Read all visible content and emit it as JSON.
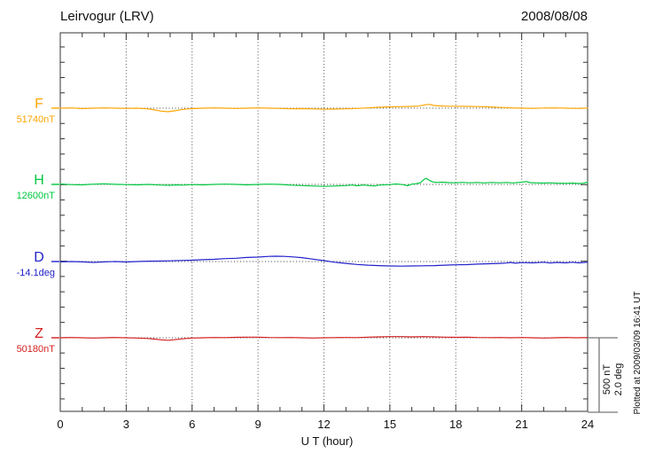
{
  "header": {
    "title": "Leirvogur (LRV)",
    "date": "2008/08/08"
  },
  "footer_note": "Plotted at 2009/03/09 16:41 UT",
  "scale_bar": {
    "nT_label": "500 nT",
    "deg_label": "2.0 deg"
  },
  "chart_data": {
    "type": "line",
    "title": "Leirvogur (LRV)",
    "date": "2008/08/08",
    "xlabel": "U T (hour)",
    "x_range": [
      0,
      24
    ],
    "x_ticks": [
      0,
      3,
      6,
      9,
      12,
      15,
      18,
      21,
      24
    ],
    "x_minor_tick_step_hours": 1,
    "grid": "dotted vertical lines every 3 hours; dotted horizontal baseline per channel",
    "scale": {
      "nT_per_division": 500,
      "deg_per_division": 2.0
    },
    "points_format": "[hour_UT, offset_from_baseline_in_channel_units]",
    "series": [
      {
        "name": "F",
        "units": "nT",
        "baseline_label": "51740nT",
        "baseline_value": 51740,
        "color": "#FFA500",
        "points": [
          [
            0,
            0
          ],
          [
            0.5,
            2
          ],
          [
            1,
            -3
          ],
          [
            1.5,
            0
          ],
          [
            2,
            2
          ],
          [
            2.5,
            0
          ],
          [
            3,
            -2
          ],
          [
            3.5,
            0
          ],
          [
            4,
            -5
          ],
          [
            4.3,
            -12
          ],
          [
            4.6,
            -20
          ],
          [
            4.9,
            -24
          ],
          [
            5.2,
            -18
          ],
          [
            5.5,
            -10
          ],
          [
            5.8,
            -5
          ],
          [
            6,
            -3
          ],
          [
            6.5,
            0
          ],
          [
            7,
            2
          ],
          [
            7.5,
            0
          ],
          [
            8,
            -2
          ],
          [
            8.5,
            0
          ],
          [
            9,
            2
          ],
          [
            9.5,
            0
          ],
          [
            10,
            -2
          ],
          [
            10.5,
            -4
          ],
          [
            11,
            -3
          ],
          [
            11.5,
            -5
          ],
          [
            12,
            -7
          ],
          [
            12.5,
            -6
          ],
          [
            13,
            -4
          ],
          [
            13.5,
            -2
          ],
          [
            14,
            2
          ],
          [
            14.5,
            6
          ],
          [
            15,
            9
          ],
          [
            15.5,
            10
          ],
          [
            16,
            12
          ],
          [
            16.3,
            14
          ],
          [
            16.6,
            22
          ],
          [
            16.8,
            26
          ],
          [
            17,
            18
          ],
          [
            17.3,
            15
          ],
          [
            17.6,
            13
          ],
          [
            18,
            13
          ],
          [
            18.5,
            12
          ],
          [
            19,
            11
          ],
          [
            19.5,
            9
          ],
          [
            20,
            5
          ],
          [
            20.5,
            2
          ],
          [
            21,
            0
          ],
          [
            21.5,
            -2
          ],
          [
            22,
            1
          ],
          [
            22.5,
            2
          ],
          [
            23,
            0
          ],
          [
            23.5,
            -2
          ],
          [
            24,
            0
          ]
        ]
      },
      {
        "name": "H",
        "units": "nT",
        "baseline_label": "12600nT",
        "baseline_value": 12600,
        "color": "#00C840",
        "points": [
          [
            0,
            3
          ],
          [
            0.3,
            0
          ],
          [
            0.6,
            -2
          ],
          [
            1,
            -3
          ],
          [
            1.3,
            0
          ],
          [
            1.6,
            2
          ],
          [
            2,
            4
          ],
          [
            2.3,
            2
          ],
          [
            2.6,
            0
          ],
          [
            3,
            -1
          ],
          [
            3.5,
            -3
          ],
          [
            4,
            0
          ],
          [
            4.5,
            -4
          ],
          [
            5,
            -6
          ],
          [
            5.3,
            -3
          ],
          [
            5.6,
            -5
          ],
          [
            6,
            -1
          ],
          [
            6.5,
            -3
          ],
          [
            7,
            0
          ],
          [
            7.5,
            2
          ],
          [
            8,
            0
          ],
          [
            8.5,
            -3
          ],
          [
            9,
            0
          ],
          [
            9.5,
            2
          ],
          [
            10,
            0
          ],
          [
            10.5,
            -5
          ],
          [
            11,
            -8
          ],
          [
            11.5,
            -11
          ],
          [
            12,
            -13
          ],
          [
            12.5,
            -11
          ],
          [
            13,
            -8
          ],
          [
            13.3,
            -4
          ],
          [
            13.5,
            -9
          ],
          [
            13.8,
            -4
          ],
          [
            14,
            -7
          ],
          [
            14.3,
            -11
          ],
          [
            14.5,
            -5
          ],
          [
            15,
            -1
          ],
          [
            15.3,
            3
          ],
          [
            15.6,
            -2
          ],
          [
            15.8,
            -9
          ],
          [
            16,
            2
          ],
          [
            16.2,
            5
          ],
          [
            16.4,
            12
          ],
          [
            16.55,
            34
          ],
          [
            16.65,
            41
          ],
          [
            16.8,
            28
          ],
          [
            16.95,
            17
          ],
          [
            17.1,
            13
          ],
          [
            17.4,
            15
          ],
          [
            17.7,
            12
          ],
          [
            18,
            11
          ],
          [
            18.3,
            14
          ],
          [
            18.6,
            11
          ],
          [
            19,
            13
          ],
          [
            19.3,
            10
          ],
          [
            19.6,
            13
          ],
          [
            20,
            11
          ],
          [
            20.3,
            13
          ],
          [
            20.6,
            10
          ],
          [
            21,
            15
          ],
          [
            21.2,
            19
          ],
          [
            21.4,
            12
          ],
          [
            21.7,
            10
          ],
          [
            22,
            9
          ],
          [
            22.3,
            11
          ],
          [
            22.6,
            8
          ],
          [
            23,
            7
          ],
          [
            23.3,
            9
          ],
          [
            23.6,
            6
          ],
          [
            23.8,
            8
          ],
          [
            24,
            15
          ]
        ]
      },
      {
        "name": "D",
        "units": "deg",
        "baseline_label": "-14.1deg",
        "baseline_value": -14.1,
        "color": "#2222CC",
        "points": [
          [
            0,
            -0.01
          ],
          [
            0.5,
            0
          ],
          [
            1,
            -0.01
          ],
          [
            1.5,
            -0.025
          ],
          [
            2,
            -0.01
          ],
          [
            2.5,
            0
          ],
          [
            3,
            -0.012
          ],
          [
            3.5,
            0
          ],
          [
            4,
            0.01
          ],
          [
            4.5,
            0.012
          ],
          [
            5,
            0.02
          ],
          [
            5.5,
            0.03
          ],
          [
            6,
            0.035
          ],
          [
            6.5,
            0.05
          ],
          [
            7,
            0.06
          ],
          [
            7.5,
            0.08
          ],
          [
            8,
            0.09
          ],
          [
            8.5,
            0.11
          ],
          [
            9,
            0.12
          ],
          [
            9.5,
            0.14
          ],
          [
            9.8,
            0.145
          ],
          [
            10.2,
            0.14
          ],
          [
            10.6,
            0.125
          ],
          [
            11,
            0.105
          ],
          [
            11.5,
            0.065
          ],
          [
            12,
            0.025
          ],
          [
            12.5,
            -0.02
          ],
          [
            13,
            -0.05
          ],
          [
            13.5,
            -0.08
          ],
          [
            14,
            -0.1
          ],
          [
            14.5,
            -0.11
          ],
          [
            15,
            -0.12
          ],
          [
            15.5,
            -0.125
          ],
          [
            16,
            -0.12
          ],
          [
            16.5,
            -0.115
          ],
          [
            17,
            -0.11
          ],
          [
            17.5,
            -0.1
          ],
          [
            18,
            -0.09
          ],
          [
            18.5,
            -0.085
          ],
          [
            19,
            -0.07
          ],
          [
            19.5,
            -0.06
          ],
          [
            20,
            -0.05
          ],
          [
            20.3,
            -0.04
          ],
          [
            20.5,
            -0.025
          ],
          [
            20.7,
            -0.045
          ],
          [
            21,
            -0.03
          ],
          [
            21.5,
            -0.035
          ],
          [
            22,
            -0.02
          ],
          [
            22.3,
            -0.04
          ],
          [
            22.6,
            -0.025
          ],
          [
            23,
            -0.035
          ],
          [
            23.3,
            -0.02
          ],
          [
            23.6,
            -0.035
          ],
          [
            24,
            -0.02
          ]
        ]
      },
      {
        "name": "Z",
        "units": "nT",
        "baseline_label": "50180nT",
        "baseline_value": 50180,
        "color": "#D42020",
        "points": [
          [
            0,
            0
          ],
          [
            0.5,
            2
          ],
          [
            1,
            0
          ],
          [
            1.5,
            -2
          ],
          [
            2,
            0
          ],
          [
            2.5,
            2
          ],
          [
            3,
            0
          ],
          [
            3.5,
            -2
          ],
          [
            4,
            -5
          ],
          [
            4.3,
            -9
          ],
          [
            4.6,
            -14
          ],
          [
            4.9,
            -17
          ],
          [
            5.2,
            -13
          ],
          [
            5.5,
            -8
          ],
          [
            5.8,
            -4
          ],
          [
            6,
            -2
          ],
          [
            6.5,
            0
          ],
          [
            7,
            2
          ],
          [
            7.5,
            1
          ],
          [
            8,
            3
          ],
          [
            8.5,
            4
          ],
          [
            9,
            4
          ],
          [
            9.5,
            2
          ],
          [
            10,
            1
          ],
          [
            10.5,
            2
          ],
          [
            11,
            0
          ],
          [
            11.5,
            -2
          ],
          [
            12,
            0
          ],
          [
            12.5,
            1
          ],
          [
            13,
            2
          ],
          [
            13.5,
            1
          ],
          [
            14,
            4
          ],
          [
            14.5,
            6
          ],
          [
            15,
            8
          ],
          [
            15.5,
            8
          ],
          [
            16,
            6
          ],
          [
            16.5,
            8
          ],
          [
            17,
            6
          ],
          [
            17.5,
            4
          ],
          [
            18,
            3
          ],
          [
            18.5,
            4
          ],
          [
            19,
            2
          ],
          [
            19.5,
            1
          ],
          [
            20,
            2
          ],
          [
            20.5,
            0
          ],
          [
            21,
            2
          ],
          [
            21.5,
            0
          ],
          [
            22,
            -2
          ],
          [
            22.5,
            0
          ],
          [
            23,
            2
          ],
          [
            23.5,
            0
          ],
          [
            24,
            1
          ]
        ]
      }
    ]
  }
}
